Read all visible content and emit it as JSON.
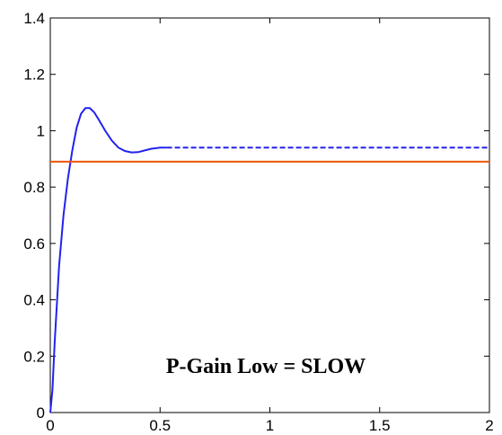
{
  "chart_data": {
    "type": "line",
    "title": "",
    "xlabel": "",
    "ylabel": "",
    "xlim": [
      0,
      2
    ],
    "ylim": [
      0,
      1.4
    ],
    "x_ticks": [
      "0",
      "0.5",
      "1",
      "1.5",
      "2"
    ],
    "y_ticks": [
      "0",
      "0.2",
      "0.4",
      "0.6",
      "0.8",
      "1",
      "1.2",
      "1.4"
    ],
    "grid": false,
    "annotation": "P-Gain Low = SLOW",
    "series": [
      {
        "color": "#2222ee",
        "style": "solid",
        "x": [
          0,
          0.01,
          0.02,
          0.04,
          0.06,
          0.08,
          0.1,
          0.12,
          0.14,
          0.16,
          0.18,
          0.2,
          0.22,
          0.25,
          0.28,
          0.31,
          0.34,
          0.37,
          0.4,
          0.43,
          0.46,
          0.5,
          0.53
        ],
        "y": [
          0,
          0.08,
          0.25,
          0.52,
          0.7,
          0.83,
          0.93,
          1.01,
          1.06,
          1.08,
          1.08,
          1.065,
          1.04,
          1.0,
          0.965,
          0.94,
          0.928,
          0.923,
          0.924,
          0.93,
          0.936,
          0.94,
          0.94
        ]
      },
      {
        "color": "#2222ee",
        "style": "dashed",
        "x": [
          0.53,
          2.0
        ],
        "y": [
          0.94,
          0.94
        ]
      },
      {
        "color": "#ee5500",
        "style": "solid",
        "x": [
          0,
          2.0
        ],
        "y": [
          0.89,
          0.89
        ]
      }
    ]
  }
}
